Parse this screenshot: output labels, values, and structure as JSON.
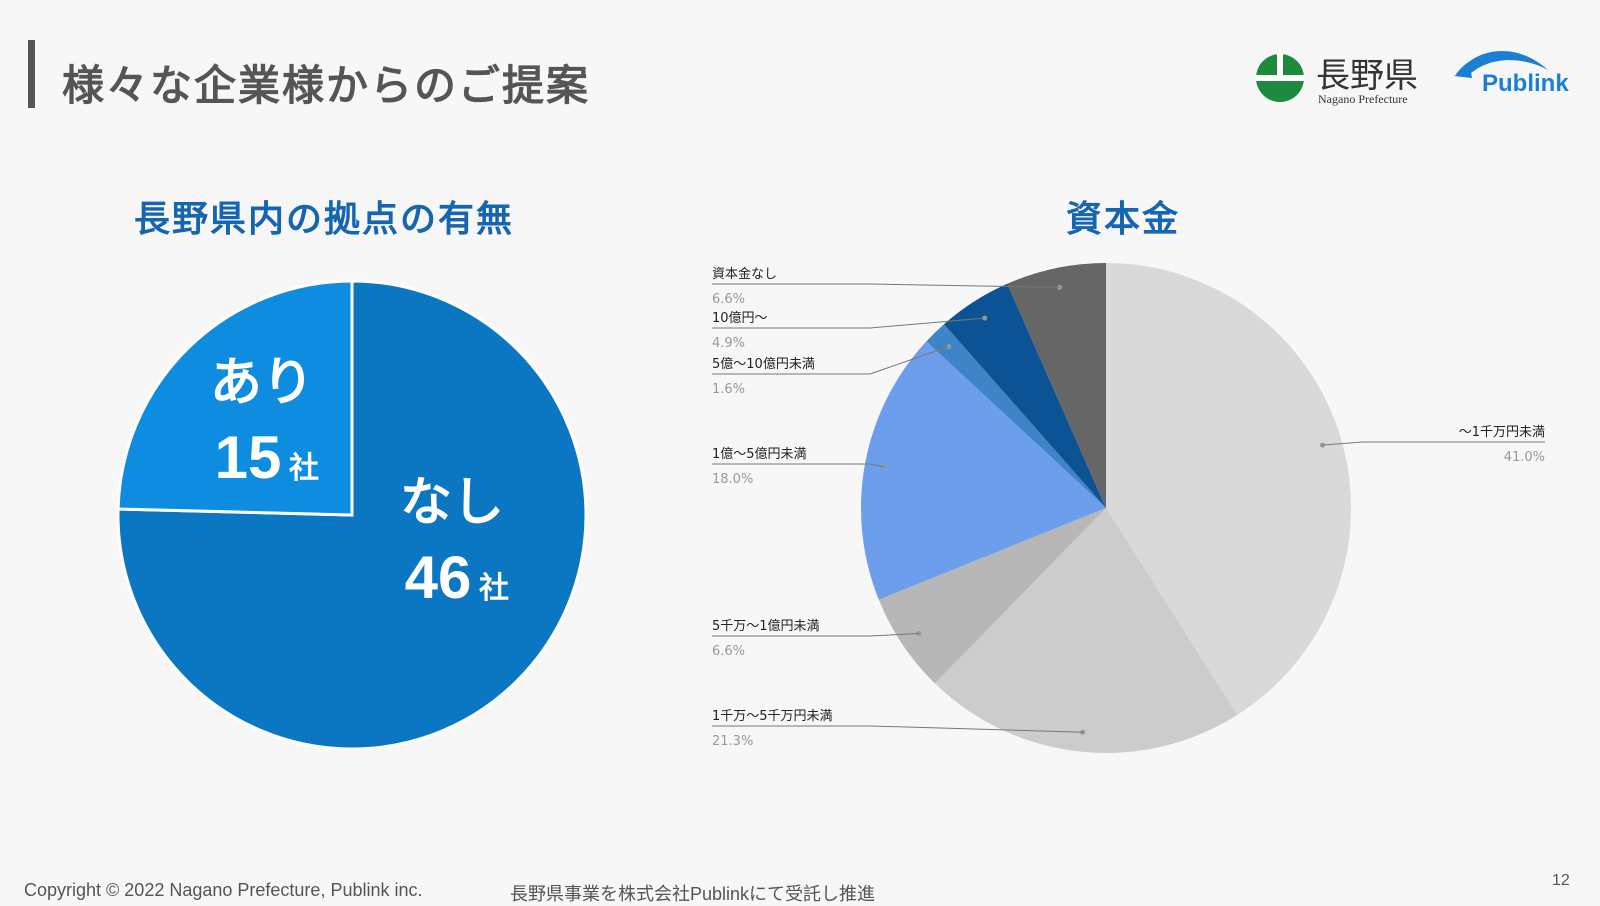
{
  "header": {
    "title": "様々な企業様からのご提案",
    "logo_nagano": "長野県",
    "logo_nagano_sub": "Nagano Prefecture",
    "logo_publink": "Publink"
  },
  "chart_data": [
    {
      "type": "pie",
      "title": "長野県内の拠点の有無",
      "slices": [
        {
          "label": "なし",
          "value": 46,
          "value_text": "46",
          "unit": "社",
          "color": "#0b76c1"
        },
        {
          "label": "あり",
          "value": 15,
          "value_text": "15",
          "unit": "社",
          "color": "#0e8de0"
        }
      ]
    },
    {
      "type": "pie",
      "title": "資本金",
      "slices": [
        {
          "label": "〜1千万円未満",
          "value": 41.0,
          "value_text": "41.0%",
          "color": "#d9d9d9"
        },
        {
          "label": "1千万〜5千万円未満",
          "value": 21.3,
          "value_text": "21.3%",
          "color": "#cccccc"
        },
        {
          "label": "5千万〜1億円未満",
          "value": 6.6,
          "value_text": "6.6%",
          "color": "#b7b7b7"
        },
        {
          "label": "1億〜5億円未満",
          "value": 18.0,
          "value_text": "18.0%",
          "color": "#6d9eeb"
        },
        {
          "label": "5億〜10億円未満",
          "value": 1.6,
          "value_text": "1.6%",
          "color": "#3d85c6"
        },
        {
          "label": "10億円〜",
          "value": 4.9,
          "value_text": "4.9%",
          "color": "#0b5394"
        },
        {
          "label": "資本金なし",
          "value": 6.6,
          "value_text": "6.6%",
          "color": "#666666"
        }
      ]
    }
  ],
  "footer": {
    "copyright": "Copyright © 2022 Nagano Prefecture, Publink inc.",
    "contract": "長野県事業を株式会社Publinkにて受託し推進",
    "page": "12"
  }
}
